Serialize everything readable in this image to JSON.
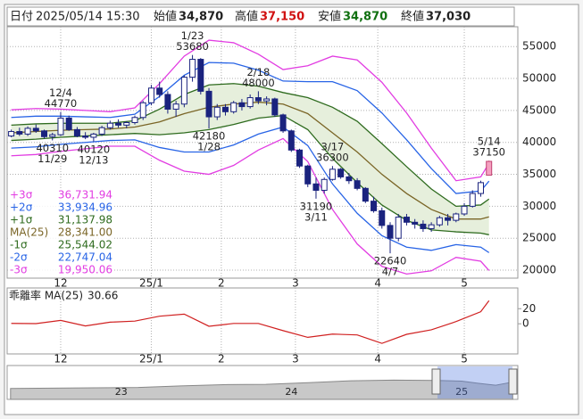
{
  "header": [
    {
      "label": "日付",
      "value": "2025/05/14 15:30"
    },
    {
      "label": "始値",
      "value": "34,870"
    },
    {
      "label": "高値",
      "value": "37,150"
    },
    {
      "label": "安値",
      "value": "34,870"
    },
    {
      "label": "終値",
      "value": "37,030"
    }
  ],
  "chart_data": [
    {
      "type": "candlestick",
      "x": [
        0,
        2,
        4,
        6,
        8,
        10,
        12,
        14,
        16,
        18,
        20,
        22,
        24,
        26,
        28,
        30,
        32,
        34,
        36,
        38,
        40,
        42,
        44,
        46,
        48,
        50,
        52,
        54,
        56,
        58,
        60,
        62,
        64,
        66,
        68,
        70,
        72,
        74,
        76,
        78,
        80,
        82,
        84,
        86,
        88,
        90,
        92,
        94,
        96,
        98,
        100,
        102,
        104,
        106,
        108,
        110,
        112,
        114,
        116
      ],
      "open": [
        41000,
        41700,
        41300,
        42200,
        41800,
        40900,
        41200,
        43800,
        42000,
        41000,
        40800,
        41300,
        42300,
        43000,
        42700,
        43100,
        43900,
        46200,
        48500,
        47500,
        45200,
        46000,
        50200,
        53000,
        48000,
        44000,
        45500,
        44800,
        46200,
        45600,
        47000,
        46500,
        46800,
        44300,
        41800,
        38800,
        36300,
        33500,
        32500,
        34200,
        35800,
        34600,
        34000,
        32800,
        30800,
        29300,
        27000,
        25000,
        28300,
        27500,
        27200,
        26500,
        27100,
        28200,
        27800,
        28800,
        30000,
        32000,
        34870
      ],
      "high": [
        42000,
        42300,
        42500,
        42800,
        42000,
        41500,
        44770,
        44200,
        42400,
        41600,
        41500,
        42600,
        43400,
        43600,
        43300,
        44200,
        46500,
        49000,
        49500,
        48000,
        46500,
        50500,
        53680,
        53200,
        48500,
        46000,
        46000,
        46500,
        46800,
        47500,
        48000,
        47200,
        47000,
        44500,
        42000,
        39000,
        36500,
        34500,
        34500,
        36300,
        36000,
        35200,
        34400,
        33000,
        31500,
        29800,
        27500,
        28800,
        28800,
        28000,
        27800,
        27500,
        28500,
        28800,
        29000,
        30500,
        32500,
        34000,
        37150
      ],
      "low": [
        40800,
        41000,
        41000,
        41500,
        40600,
        40310,
        41000,
        41800,
        40800,
        40500,
        40120,
        41000,
        42000,
        42300,
        42200,
        42800,
        43500,
        45800,
        47000,
        44500,
        44000,
        45500,
        49500,
        47500,
        42180,
        43500,
        44200,
        44500,
        45000,
        45300,
        46000,
        45800,
        44000,
        41500,
        38500,
        36000,
        33000,
        31190,
        32000,
        34000,
        34300,
        33500,
        32500,
        30500,
        29000,
        26500,
        22640,
        24500,
        27000,
        26500,
        26000,
        26000,
        26800,
        27000,
        27500,
        28500,
        29800,
        31500,
        34870
      ],
      "close": [
        41700,
        41300,
        42200,
        41800,
        40900,
        41200,
        43800,
        42000,
        41000,
        40800,
        41300,
        42300,
        43000,
        42700,
        43100,
        43900,
        46200,
        48500,
        47500,
        45200,
        46000,
        50200,
        53000,
        48000,
        44000,
        45500,
        44800,
        46200,
        45600,
        47000,
        46500,
        46800,
        44300,
        41800,
        38800,
        36300,
        33500,
        32500,
        34200,
        35800,
        34600,
        34000,
        32800,
        30800,
        29300,
        27000,
        25000,
        28300,
        27500,
        27200,
        26500,
        27100,
        28200,
        27800,
        28800,
        30000,
        32000,
        33700,
        37030
      ],
      "up_color": "#ffffff",
      "down_color": "#1a237e",
      "last_color": "#f4a0c0",
      "xlim": [
        -1,
        123
      ],
      "ylim": [
        18750,
        58100
      ],
      "yticks": [
        20000,
        25000,
        30000,
        35000,
        40000,
        45000,
        50000,
        55000
      ],
      "xticks": [
        {
          "value": 12,
          "label": "12"
        },
        {
          "value": 34,
          "label": "25/1"
        },
        {
          "value": 51,
          "label": "2"
        },
        {
          "value": 69,
          "label": "3"
        },
        {
          "value": 89,
          "label": "4"
        },
        {
          "value": 110,
          "label": "5"
        }
      ],
      "grid": true,
      "band_x": [
        0,
        6,
        12,
        18,
        24,
        30,
        36,
        42,
        48,
        54,
        60,
        66,
        72,
        78,
        84,
        90,
        96,
        102,
        108,
        114,
        116
      ],
      "bands": [
        {
          "name": "+3σ",
          "color": "#e23de2",
          "values": [
            45100,
            45300,
            45200,
            45000,
            44800,
            45400,
            49200,
            53500,
            56000,
            55600,
            53800,
            51400,
            52000,
            53500,
            52900,
            49400,
            44600,
            39100,
            34000,
            34600,
            36731.94
          ],
          "last_label": "36,731.94"
        },
        {
          "name": "+2σ",
          "color": "#2864e6",
          "values": [
            43900,
            44100,
            44100,
            44000,
            43900,
            44400,
            47200,
            50500,
            52500,
            52400,
            51300,
            49600,
            49500,
            49500,
            48100,
            44600,
            40400,
            35900,
            32000,
            32400,
            33934.96
          ],
          "last_label": "33,934.96"
        },
        {
          "name": "+1σ",
          "color": "#2e6b1e",
          "values": [
            42700,
            42900,
            43000,
            43000,
            43000,
            43400,
            45200,
            47500,
            49000,
            49200,
            48800,
            47800,
            47000,
            45500,
            43300,
            39800,
            36200,
            32700,
            30000,
            30200,
            31137.98
          ],
          "last_label": "31,137.98"
        },
        {
          "name": "MA(25)",
          "color": "#7a6526",
          "values": [
            41500,
            41700,
            41900,
            42000,
            42100,
            42400,
            43200,
            44500,
            45500,
            46000,
            46300,
            46000,
            44500,
            41500,
            38500,
            35000,
            32000,
            29500,
            28000,
            28000,
            28341
          ],
          "last_label": "28,341.00"
        },
        {
          "name": "-1σ",
          "color": "#2e6b1e",
          "values": [
            40300,
            40500,
            40800,
            41000,
            41200,
            41400,
            41200,
            41500,
            42000,
            42800,
            43800,
            44200,
            42000,
            37500,
            33700,
            30200,
            27800,
            26300,
            26000,
            25800,
            25544.02
          ],
          "last_label": "25,544.02"
        },
        {
          "name": "-2σ",
          "color": "#2864e6",
          "values": [
            39100,
            39300,
            39700,
            40000,
            40300,
            40400,
            39200,
            38500,
            38500,
            39600,
            41300,
            42400,
            39500,
            33500,
            28900,
            25400,
            23600,
            23100,
            24000,
            23600,
            22747.04
          ],
          "last_label": "22,747.04"
        },
        {
          "name": "-3σ",
          "color": "#e23de2",
          "values": [
            37900,
            38100,
            38600,
            39000,
            39400,
            39400,
            37200,
            35500,
            35000,
            36400,
            38800,
            40600,
            37000,
            29500,
            24100,
            20600,
            19400,
            19900,
            22000,
            21400,
            19950.06
          ],
          "last_label": "19,950.06"
        }
      ],
      "band_fill": "#e6efdc",
      "annotations": [
        {
          "x": 12,
          "label": "12/4",
          "value": 44770,
          "pos": "above"
        },
        {
          "x": 10,
          "label": "11/29",
          "value": 40310,
          "pos": "below"
        },
        {
          "x": 20,
          "label": "12/13",
          "value": 40120,
          "pos": "below"
        },
        {
          "x": 44,
          "label": "1/23",
          "value": 53680,
          "pos": "above"
        },
        {
          "x": 48,
          "label": "1/28",
          "value": 42180,
          "pos": "below"
        },
        {
          "x": 60,
          "label": "2/18",
          "value": 48000,
          "pos": "above"
        },
        {
          "x": 78,
          "label": "3/17",
          "value": 36300,
          "pos": "above"
        },
        {
          "x": 74,
          "label": "3/11",
          "value": 31190,
          "pos": "below"
        },
        {
          "x": 92,
          "label": "4/7",
          "value": 22640,
          "pos": "below"
        },
        {
          "x": 116,
          "label": "5/14",
          "value": 37150,
          "pos": "above"
        }
      ]
    },
    {
      "type": "line",
      "title": "乖離率 MA(25)",
      "color": "#d02020",
      "x": [
        0,
        6,
        12,
        18,
        24,
        30,
        36,
        42,
        48,
        54,
        60,
        66,
        72,
        78,
        84,
        90,
        96,
        102,
        108,
        114,
        116
      ],
      "values": [
        0.5,
        0.2,
        4.5,
        -2.9,
        2.1,
        3.5,
        10,
        12.8,
        -3.3,
        0.4,
        0.4,
        -9.1,
        -18,
        -13.7,
        -14.8,
        -26,
        -14,
        -8,
        2.9,
        16,
        30.66
      ],
      "ylim": [
        -40,
        47.5
      ],
      "yticks": [
        0,
        20
      ]
    },
    {
      "type": "area",
      "color": "#c8c8c8",
      "x": [
        22.35,
        22.6,
        22.85,
        23.1,
        23.35,
        23.6,
        23.85,
        24.1,
        24.35,
        24.6,
        24.85,
        25.0,
        25.1,
        25.2,
        25.3
      ],
      "values": [
        27000,
        27500,
        28000,
        28500,
        31000,
        33000,
        33500,
        36000,
        39000,
        40000,
        39500,
        38500,
        35000,
        32000,
        37000
      ],
      "xlim": [
        22.33,
        25.33
      ],
      "ylim": [
        10000,
        60000
      ],
      "xticks": [
        23,
        24,
        25
      ]
    }
  ]
}
